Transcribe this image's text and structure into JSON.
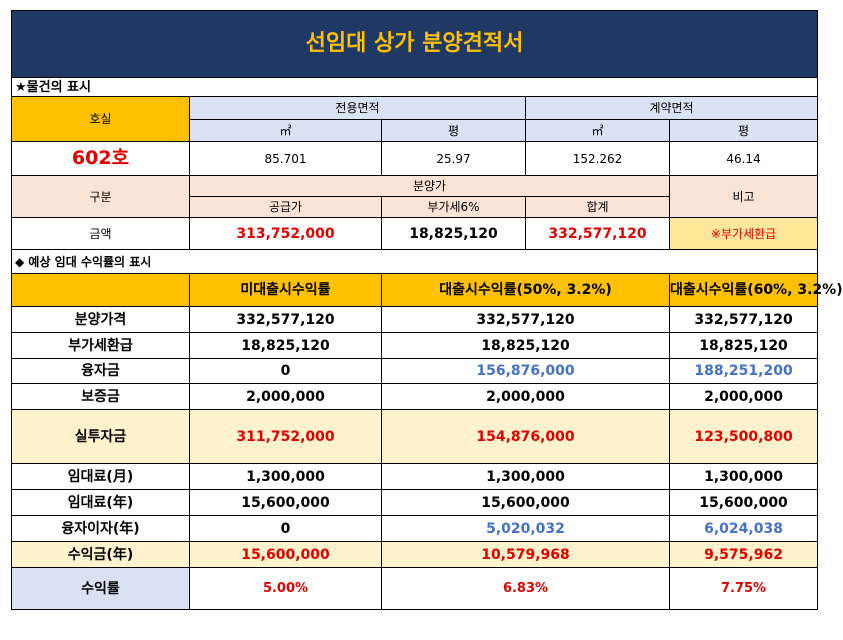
{
  "title": "선임대 상가 분양견적서",
  "property": {
    "section_label": "★물건의 표시",
    "room_label": "호실",
    "exclusive_area_label": "전용면적",
    "contract_area_label": "계약면적",
    "unit_m2": "㎡",
    "unit_pyeong": "평",
    "room": "602호",
    "exclusive_m2": "85.701",
    "exclusive_pyeong": "25.97",
    "contract_m2": "152.262",
    "contract_pyeong": "46.14"
  },
  "price": {
    "category_label": "구분",
    "sale_price_label": "분양가",
    "note_label": "비고",
    "supply_label": "공급가",
    "vat_label": "부가세6%",
    "total_label": "합계",
    "amount_label": "금액",
    "supply": "313,752,000",
    "vat": "18,825,120",
    "total": "332,577,120",
    "note": "※부가세환급"
  },
  "returns": {
    "section_label": "◆ 예상 임대 수익률의 표시",
    "columns": [
      "미대출시수익률",
      "대출시수익률(50%, 3.2%)",
      "대출시수익률(60%, 3.2%)"
    ],
    "rows": [
      {
        "label": "분양가격",
        "values": [
          "332,577,120",
          "332,577,120",
          "332,577,120"
        ]
      },
      {
        "label": "부가세환급",
        "values": [
          "18,825,120",
          "18,825,120",
          "18,825,120"
        ]
      },
      {
        "label": "융자금",
        "values": [
          "0",
          "156,876,000",
          "188,251,200"
        ]
      },
      {
        "label": "보증금",
        "values": [
          "2,000,000",
          "2,000,000",
          "2,000,000"
        ]
      },
      {
        "label": "실투자금",
        "values": [
          "311,752,000",
          "154,876,000",
          "123,500,800"
        ]
      },
      {
        "label": "임대료(月)",
        "values": [
          "1,300,000",
          "1,300,000",
          "1,300,000"
        ]
      },
      {
        "label": "임대료(年)",
        "values": [
          "15,600,000",
          "15,600,000",
          "15,600,000"
        ]
      },
      {
        "label": "융자이자(年)",
        "values": [
          "0",
          "5,020,032",
          "6,024,038"
        ]
      },
      {
        "label": "수익금(年)",
        "values": [
          "15,600,000",
          "10,579,968",
          "9,575,962"
        ]
      },
      {
        "label": "수익률",
        "values": [
          "5.00%",
          "6.83%",
          "7.75%"
        ]
      }
    ]
  },
  "colors": {
    "title_bg": "#1f3864",
    "title_text": "#ffc000",
    "header_orange": "#ffc000",
    "light_blue": "#dae3f3",
    "light_pink": "#fbe4d5",
    "cream": "#fff2cc",
    "red_text": "#e00000",
    "blue_text": "#4472c4"
  }
}
